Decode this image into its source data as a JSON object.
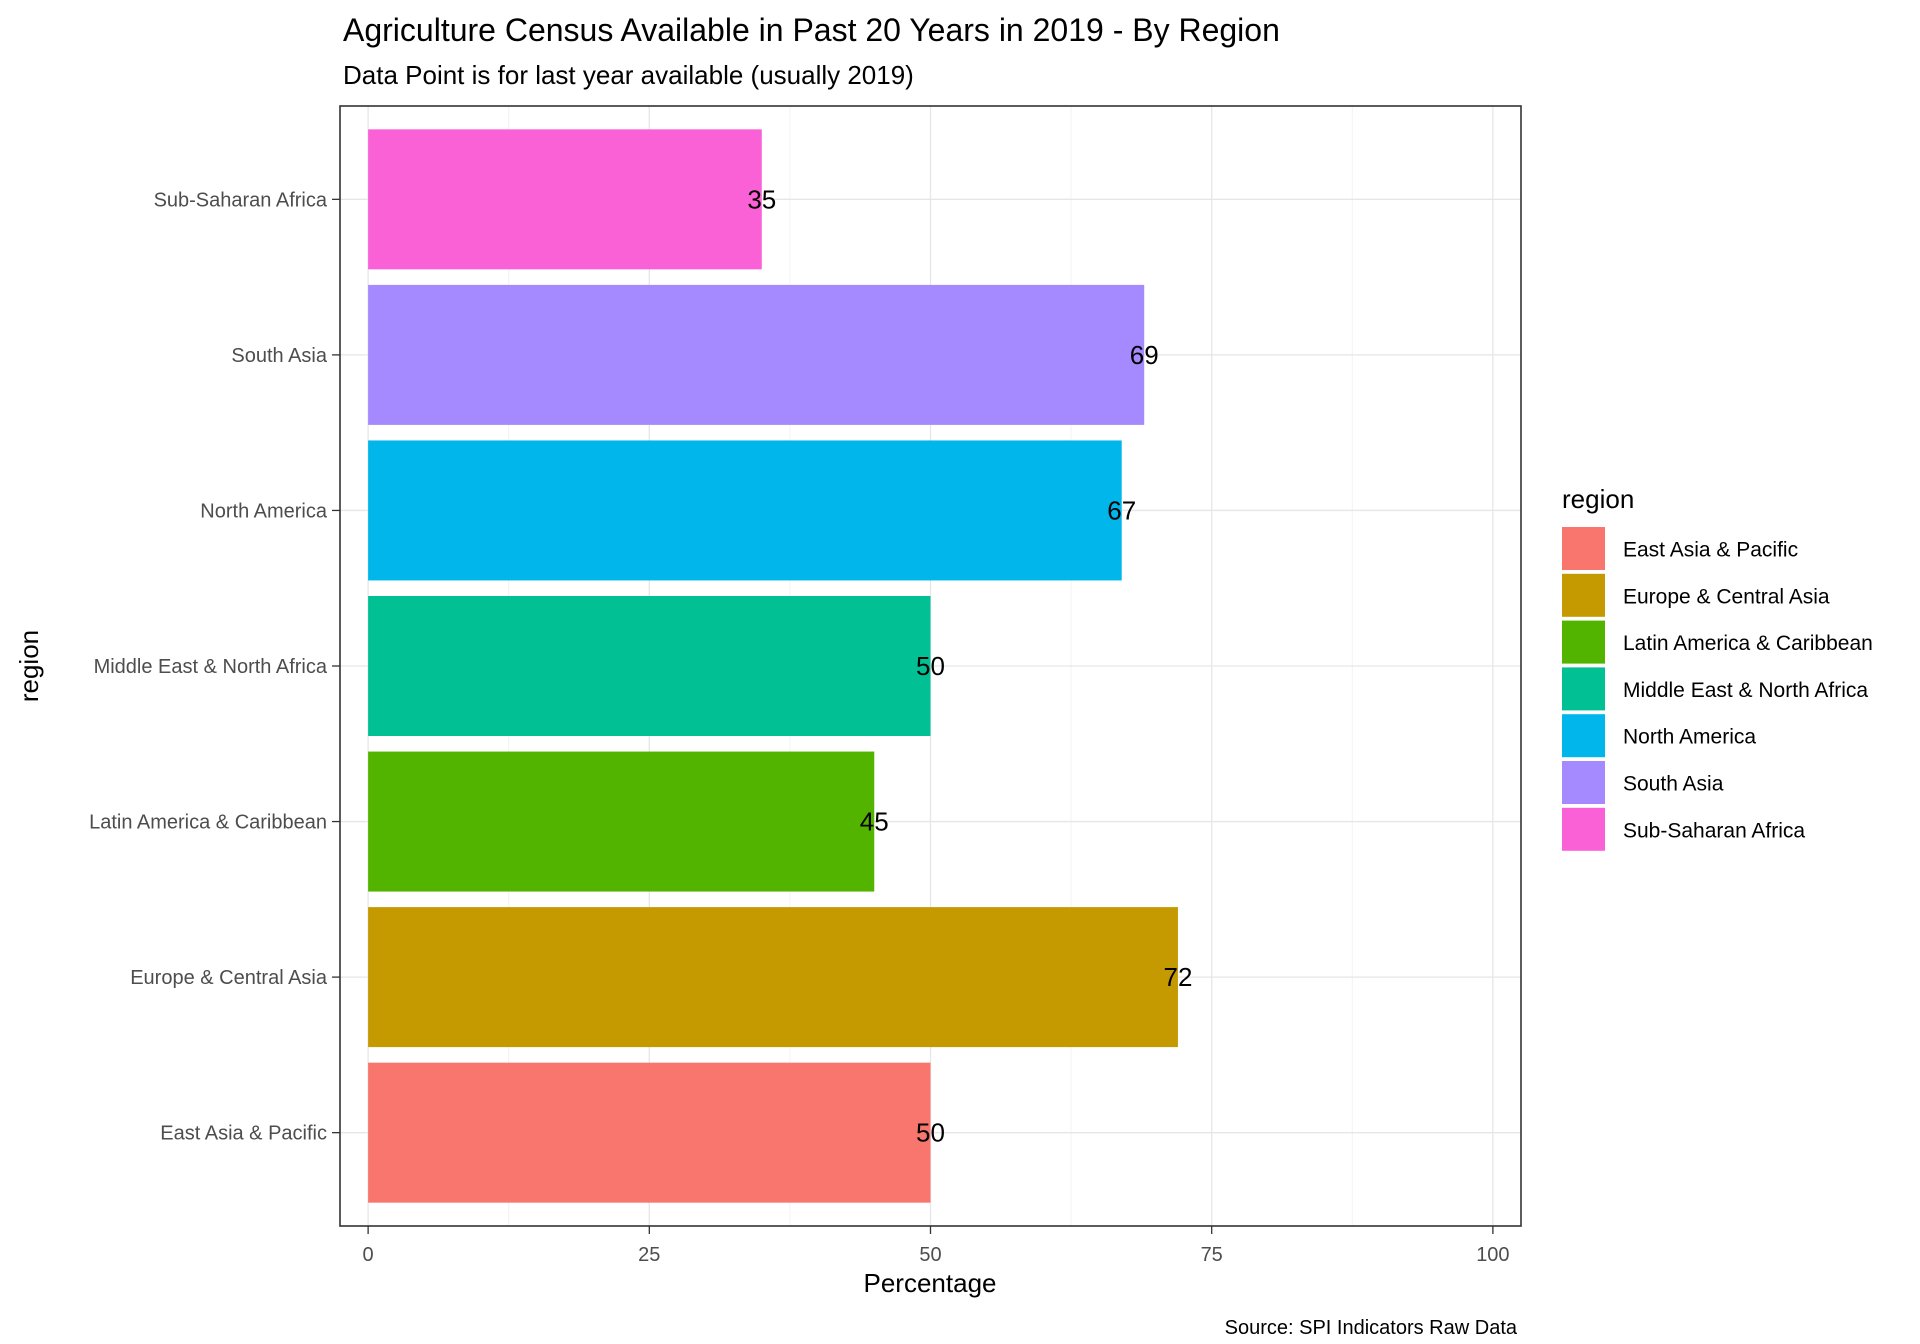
{
  "chart_data": {
    "type": "bar",
    "orientation": "horizontal",
    "title": "Agriculture Census Available in Past 20 Years in 2019 - By Region",
    "subtitle": "Data Point is for last year available (usually 2019)",
    "xlabel": "Percentage",
    "ylabel": "region",
    "xlim": [
      -2.5,
      102.5
    ],
    "x_ticks": [
      0,
      25,
      50,
      75,
      100
    ],
    "grid": true,
    "categories": [
      "East Asia & Pacific",
      "Europe & Central Asia",
      "Latin America & Caribbean",
      "Middle East & North Africa",
      "North America",
      "South Asia",
      "Sub-Saharan Africa"
    ],
    "values": [
      50,
      72,
      45,
      50,
      67,
      69,
      35
    ],
    "data_labels": [
      "50",
      "72",
      "45",
      "50",
      "67",
      "69",
      "35"
    ],
    "colors": [
      "#F8766D",
      "#C49A00",
      "#53B400",
      "#00C094",
      "#00B6EB",
      "#A58AFF",
      "#FB61D7"
    ],
    "legend": {
      "title": "region",
      "placement": "right",
      "entries": [
        "East Asia & Pacific",
        "Europe & Central Asia",
        "Latin America & Caribbean",
        "Middle East & North Africa",
        "North America",
        "South Asia",
        "Sub-Saharan Africa"
      ]
    },
    "caption": "Source: SPI Indicators Raw Data"
  }
}
